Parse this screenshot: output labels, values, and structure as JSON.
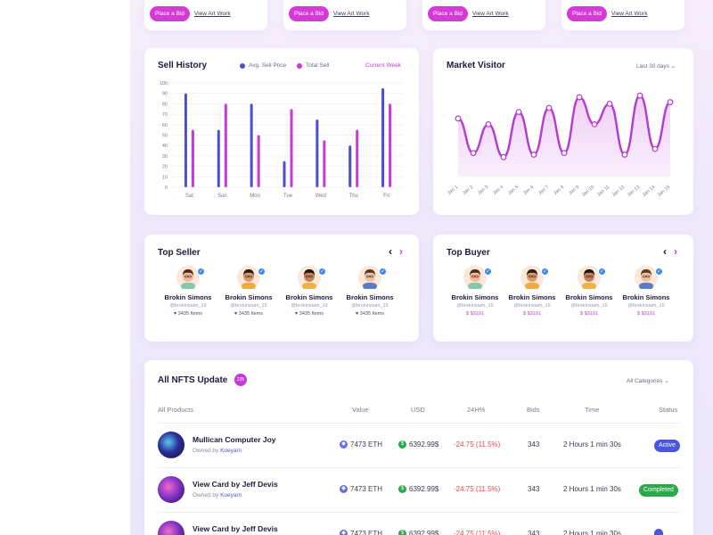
{
  "art_cards": [
    {
      "bid_label": "Place a Bid",
      "view_label": "View Art Work"
    },
    {
      "bid_label": "Place a Bid",
      "view_label": "View Art Work"
    },
    {
      "bid_label": "Place a Bid",
      "view_label": "View Art Work"
    },
    {
      "bid_label": "Place a Bid",
      "view_label": "View Art Work"
    }
  ],
  "sell_history": {
    "title": "Sell History",
    "filter_label": "Current Week"
  },
  "market_visitor": {
    "title": "Market Visitor",
    "filter_label": "Last 30 days"
  },
  "top_seller": {
    "title": "Top Seller",
    "people": [
      {
        "name": "Brokin Simons",
        "handle": "@brokinsiam_15",
        "stat": "3435 Items"
      },
      {
        "name": "Brokin Simons",
        "handle": "@brokinsiam_15",
        "stat": "3435 Items"
      },
      {
        "name": "Brokin Simons",
        "handle": "@brokinsiam_15",
        "stat": "3435 Items"
      },
      {
        "name": "Brokin Simons",
        "handle": "@brokinsiam_15",
        "stat": "3435 Items"
      }
    ]
  },
  "top_buyer": {
    "title": "Top Buyer",
    "people": [
      {
        "name": "Brokin Simons",
        "handle": "@brokinsiam_15",
        "stat": "$3191"
      },
      {
        "name": "Brokin Simons",
        "handle": "@brokinsiam_15",
        "stat": "$3191"
      },
      {
        "name": "Brokin Simons",
        "handle": "@brokinsiam_15",
        "stat": "$3191"
      },
      {
        "name": "Brokin Simons",
        "handle": "@brokinsiam_15",
        "stat": "$3191"
      }
    ]
  },
  "nfts": {
    "title": "All NFTS Update",
    "count_badge": "235",
    "filter_label": "All Categories",
    "headers": [
      "All Products",
      "Value",
      "USD",
      "24H%",
      "Bids",
      "Time",
      "Status"
    ],
    "rows": [
      {
        "name": "Mullican Computer Joy",
        "owner_prefix": "Owned by",
        "owner": "Koeyam",
        "value": "7473 ETH",
        "usd": "6392.99$",
        "change": "-24.75 (11.5%)",
        "bids": "343",
        "time": "2 Hours 1 min 30s",
        "status": "Active",
        "status_color": "#4a55e0"
      },
      {
        "name": "View Card by Jeff Devis",
        "owner_prefix": "Owned by",
        "owner": "Koeyam",
        "value": "7473 ETH",
        "usd": "6392.99$",
        "change": "-24.75 (11.5%)",
        "bids": "343",
        "time": "2 Hours 1 min 30s",
        "status": "Completed",
        "status_color": "#2aa84a"
      },
      {
        "name": "View Card by Jeff Devis",
        "owner_prefix": "Owned by",
        "owner": "Koeyam",
        "value": "7473 ETH",
        "usd": "6392.99$",
        "change": "-24.75 (11.5%)",
        "bids": "343",
        "time": "2 Hours 1 min 30s",
        "status": "",
        "status_color": "#4a55e0"
      }
    ]
  },
  "chart_data": [
    {
      "type": "bar",
      "title": "Sell History",
      "categories": [
        "Sat",
        "Sun",
        "Mon",
        "Tue",
        "Wed",
        "Thu",
        "Fri"
      ],
      "series": [
        {
          "name": "Avg. Sell Price",
          "color": "#4a4fcf",
          "values": [
            90,
            55,
            80,
            25,
            65,
            40,
            95
          ]
        },
        {
          "name": "Total Sell",
          "color": "#c63ad6",
          "values": [
            55,
            80,
            50,
            75,
            45,
            55,
            80
          ]
        }
      ],
      "ylim": [
        0,
        100
      ],
      "yticks": [
        0,
        10,
        20,
        30,
        40,
        50,
        60,
        70,
        80,
        90,
        100
      ],
      "legend": "top"
    },
    {
      "type": "area",
      "title": "Market Visitor",
      "x": [
        "Jan 1",
        "Jan 2",
        "Jan 3",
        "Jan 4",
        "Jan 5",
        "Jan 6",
        "Jan 7",
        "Jan 8",
        "Jan 9",
        "Jan 10",
        "Jan 11",
        "Jan 12",
        "Jan 13",
        "Jan 14",
        "Jan 15"
      ],
      "series": [
        {
          "color": "#b43ad0",
          "values": [
            62,
            20,
            55,
            15,
            70,
            18,
            75,
            20,
            88,
            55,
            80,
            18,
            90,
            25,
            82
          ]
        }
      ]
    }
  ]
}
